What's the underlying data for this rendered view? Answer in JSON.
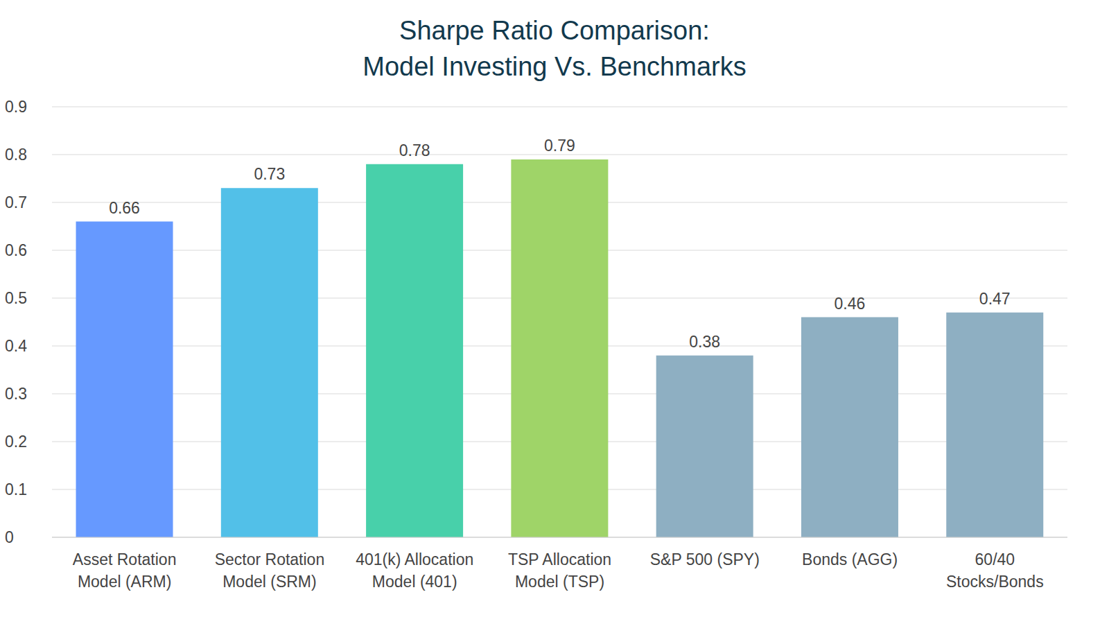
{
  "chart_data": {
    "type": "bar",
    "title": [
      "Sharpe Ratio Comparison:",
      "Model Investing Vs. Benchmarks"
    ],
    "categories": [
      "Asset Rotation Model (ARM)",
      "Sector Rotation Model (SRM)",
      "401(k) Allocation Model (401)",
      "TSP Allocation Model (TSP)",
      "S&P 500 (SPY)",
      "Bonds (AGG)",
      "60/40 Stocks/Bonds"
    ],
    "values": [
      0.66,
      0.73,
      0.78,
      0.79,
      0.38,
      0.46,
      0.47
    ],
    "colors": [
      "#6699ff",
      "#52c0e8",
      "#48d0aa",
      "#9fd468",
      "#8eafc2",
      "#8eafc2",
      "#8eafc2"
    ],
    "ylim": [
      0,
      0.9
    ],
    "yticks": [
      0,
      0.1,
      0.2,
      0.3,
      0.4,
      0.5,
      0.6,
      0.7,
      0.8,
      0.9
    ],
    "grid": true,
    "data_labels": true
  }
}
